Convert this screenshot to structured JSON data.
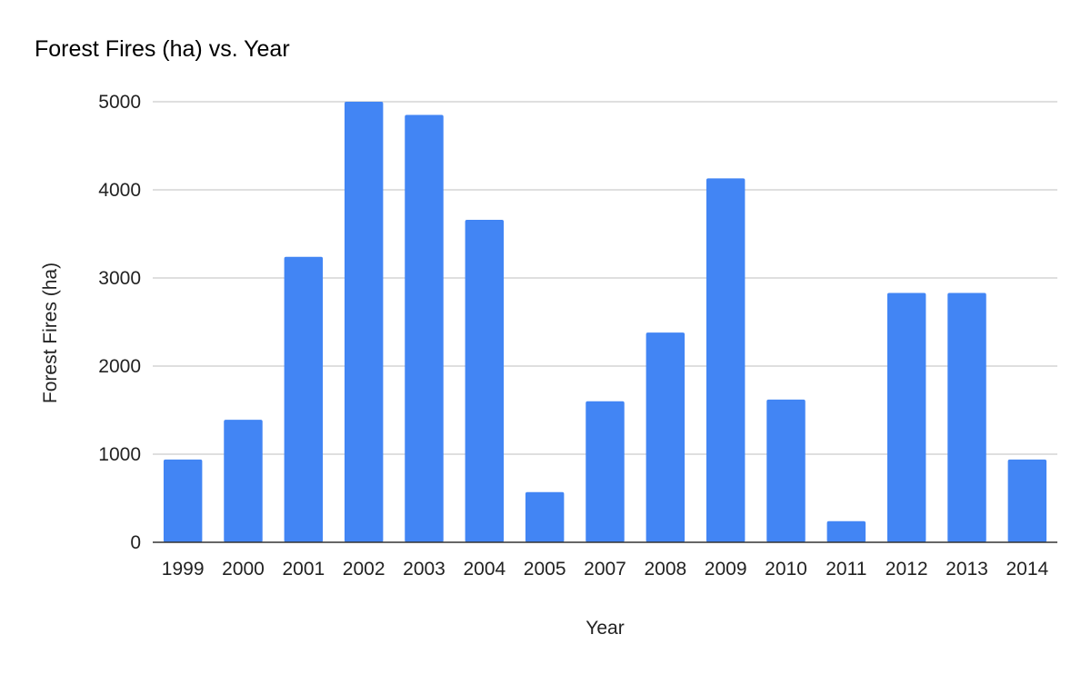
{
  "chart_data": {
    "type": "bar",
    "title": "Forest Fires (ha) vs. Year",
    "xlabel": "Year",
    "ylabel": "Forest Fires (ha)",
    "categories": [
      "1999",
      "2000",
      "2001",
      "2002",
      "2003",
      "2004",
      "2005",
      "2007",
      "2008",
      "2009",
      "2010",
      "2011",
      "2012",
      "2013",
      "2014"
    ],
    "values": [
      940,
      1390,
      3240,
      5000,
      4850,
      3660,
      570,
      1600,
      2380,
      4130,
      1620,
      240,
      2830,
      2830,
      940
    ],
    "ylim": [
      0,
      5000
    ],
    "yticks": [
      "0",
      "1000",
      "2000",
      "3000",
      "4000",
      "5000"
    ],
    "grid": true,
    "legend": "none",
    "bar_color": "#4285f4",
    "grid_color": "#cccccc",
    "axis_color": "#333333"
  }
}
